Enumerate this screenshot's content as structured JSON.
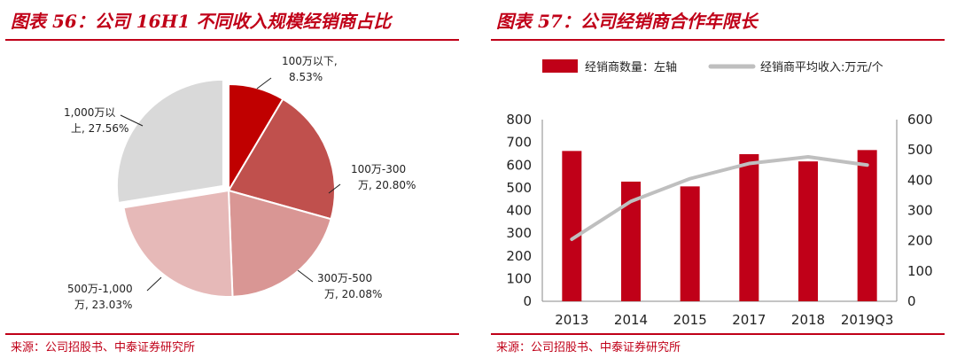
{
  "left": {
    "title": "图表 56：公司 16H1 不同收入规模经销商占比",
    "source": "来源：公司招股书、中泰证券研究所"
  },
  "right": {
    "title": "图表 57：公司经销商合作年限长",
    "source": "来源：公司招股书、中泰证券研究所"
  },
  "chart_data": [
    {
      "type": "pie",
      "title": "图表 56：公司 16H1 不同收入规模经销商占比",
      "slices": [
        {
          "label_line1": "100万以下,",
          "label_line2": "8.53%",
          "value": 8.53,
          "color": "#c00000"
        },
        {
          "label_line1": "100万-300",
          "label_line2": "万, 20.80%",
          "value": 20.8,
          "color": "#c0504d"
        },
        {
          "label_line1": "300万-500",
          "label_line2": "万, 20.08%",
          "value": 20.08,
          "color": "#d99694"
        },
        {
          "label_line1": "500万-1,000",
          "label_line2": "万, 23.03%",
          "value": 23.03,
          "color": "#e6b9b8"
        },
        {
          "label_line1": "1,000万以",
          "label_line2": "上, 27.56%",
          "value": 27.56,
          "color": "#d9d9d9"
        }
      ],
      "exploded_slice": "1,000万以上"
    },
    {
      "type": "bar",
      "title": "图表 57：公司经销商合作年限长",
      "categories": [
        "2013",
        "2014",
        "2015",
        "2017",
        "2018",
        "2019Q3"
      ],
      "series": [
        {
          "name": "经销商数量：左轴",
          "type": "bar",
          "axis": "left",
          "color": "#c00018",
          "values": [
            662,
            527,
            506,
            648,
            616,
            666
          ]
        },
        {
          "name": "经销商平均收入:万元/个",
          "type": "line",
          "axis": "right",
          "color": "#bfbfbf",
          "values": [
            205,
            330,
            405,
            455,
            477,
            450
          ]
        }
      ],
      "ylim_left": [
        0,
        800
      ],
      "yticks_left": [
        "0",
        "100",
        "200",
        "300",
        "400",
        "500",
        "600",
        "700",
        "800"
      ],
      "ylim_right": [
        0,
        600
      ],
      "yticks_right": [
        "0",
        "100",
        "200",
        "300",
        "400",
        "500",
        "600"
      ],
      "legend_position": "top"
    }
  ]
}
